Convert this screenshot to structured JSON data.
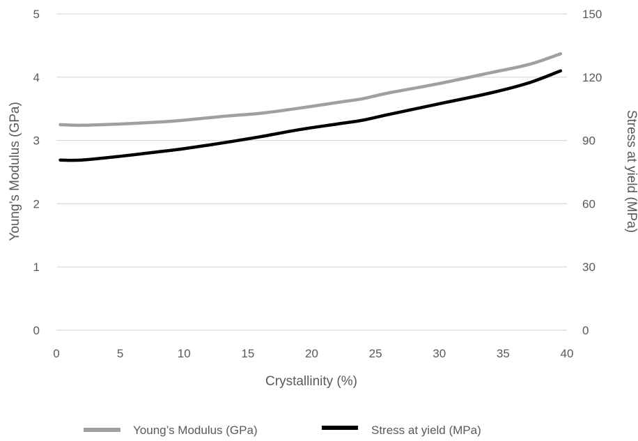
{
  "chart_data": {
    "type": "line",
    "xlabel": "Crystallinity (%)",
    "ylabel_left": "Young’s Modulus (GPa)",
    "ylabel_right": "Stress at yield (MPa)",
    "xlim": [
      0,
      40
    ],
    "ylim_left": [
      0,
      5
    ],
    "ylim_right": [
      0,
      150
    ],
    "x_ticks": [
      0,
      5,
      10,
      15,
      20,
      25,
      30,
      35,
      40
    ],
    "y_ticks_left": [
      0,
      1,
      2,
      3,
      4,
      5
    ],
    "y_ticks_right": [
      0,
      30,
      60,
      90,
      120,
      150
    ],
    "grid": true,
    "legend_position": "bottom",
    "series": [
      {
        "name": "Young’s Modulus (GPa)",
        "axis": "left",
        "color": "#a0a0a0",
        "x": [
          0.3,
          2,
          5,
          8,
          10,
          13,
          16,
          19,
          22,
          24,
          26,
          30,
          34,
          37,
          39.5
        ],
        "y": [
          3.25,
          3.24,
          3.26,
          3.29,
          3.32,
          3.38,
          3.43,
          3.51,
          3.6,
          3.66,
          3.75,
          3.9,
          4.07,
          4.2,
          4.37
        ]
      },
      {
        "name": "Stress at yield (MPa)",
        "axis": "right",
        "color": "#000000",
        "x": [
          0.3,
          2,
          5,
          8,
          10,
          13,
          16,
          19,
          22,
          24,
          26,
          30,
          34,
          37,
          39.5
        ],
        "y": [
          80.7,
          80.7,
          82.5,
          84.6,
          86.1,
          88.8,
          91.8,
          95.1,
          97.8,
          99.6,
          102.3,
          107.4,
          112.5,
          117.3,
          123.0
        ]
      }
    ]
  }
}
